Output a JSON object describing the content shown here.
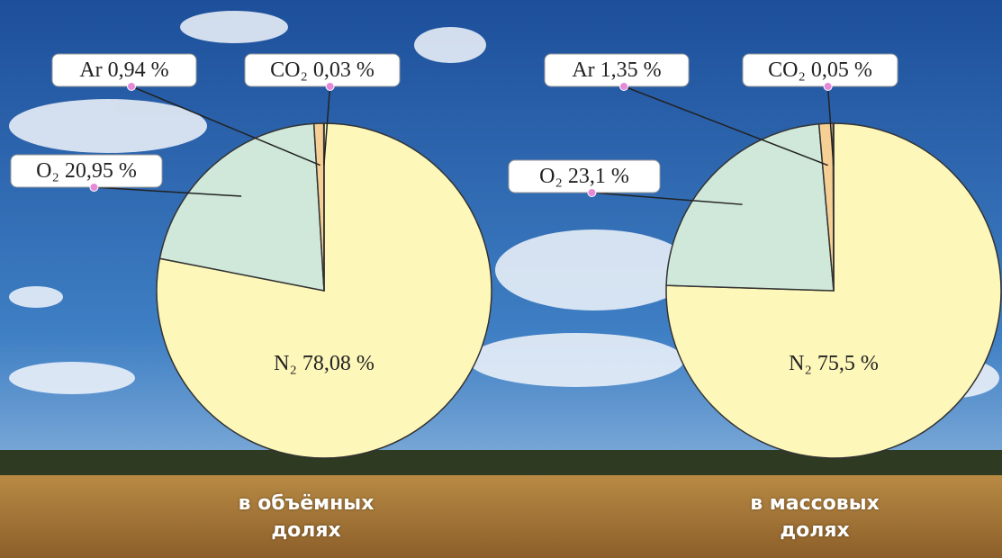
{
  "chart_data": [
    {
      "type": "pie",
      "categories": [
        "N₂",
        "O₂",
        "Ar",
        "CO₂"
      ],
      "values": [
        78.08,
        20.95,
        0.94,
        0.03
      ],
      "value_labels": [
        "78,08 %",
        "20,95 %",
        "0,94 %",
        "0,03 %"
      ],
      "colors": [
        "#fdf7b9",
        "#cfe8d9",
        "#f6cf95",
        "#ffffff"
      ],
      "caption": "в объёмных долях"
    },
    {
      "type": "pie",
      "categories": [
        "N₂",
        "O₂",
        "Ar",
        "CO₂"
      ],
      "values": [
        75.5,
        23.1,
        1.35,
        0.05
      ],
      "value_labels": [
        "75,5 %",
        "23,1 %",
        "1,35 %",
        "0,05 %"
      ],
      "colors": [
        "#fdf7b9",
        "#cfe8d9",
        "#f6cf95",
        "#ffffff"
      ],
      "caption": "в массовых долях"
    }
  ]
}
